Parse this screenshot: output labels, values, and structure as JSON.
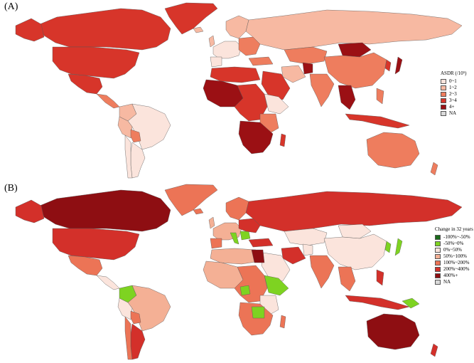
{
  "panel_a": {
    "label": "(A)",
    "legend": {
      "title": "ASDR (/10⁵)",
      "items": [
        {
          "label": "0~1",
          "color": "#fbe4dc"
        },
        {
          "label": "1~2",
          "color": "#f7b9a2"
        },
        {
          "label": "2~3",
          "color": "#ee7d5e"
        },
        {
          "label": "3~4",
          "color": "#d7352a"
        },
        {
          "label": "4+",
          "color": "#9b1014"
        },
        {
          "label": "NA",
          "color": "#d9d9d9"
        }
      ]
    }
  },
  "panel_b": {
    "label": "(B)",
    "legend": {
      "title": "Change in 32 years",
      "items": [
        {
          "label": "-100%~-50%",
          "color": "#1a6b1a"
        },
        {
          "label": "-50%~0%",
          "color": "#7ed321"
        },
        {
          "label": "0%~50%",
          "color": "#fbe4dc"
        },
        {
          "label": "50%~100%",
          "color": "#f4b095"
        },
        {
          "label": "100%~200%",
          "color": "#ec7456"
        },
        {
          "label": "200%~400%",
          "color": "#d3302a"
        },
        {
          "label": "400%+",
          "color": "#8e0e12"
        },
        {
          "label": "NA",
          "color": "#d9d9d9"
        }
      ]
    }
  }
}
